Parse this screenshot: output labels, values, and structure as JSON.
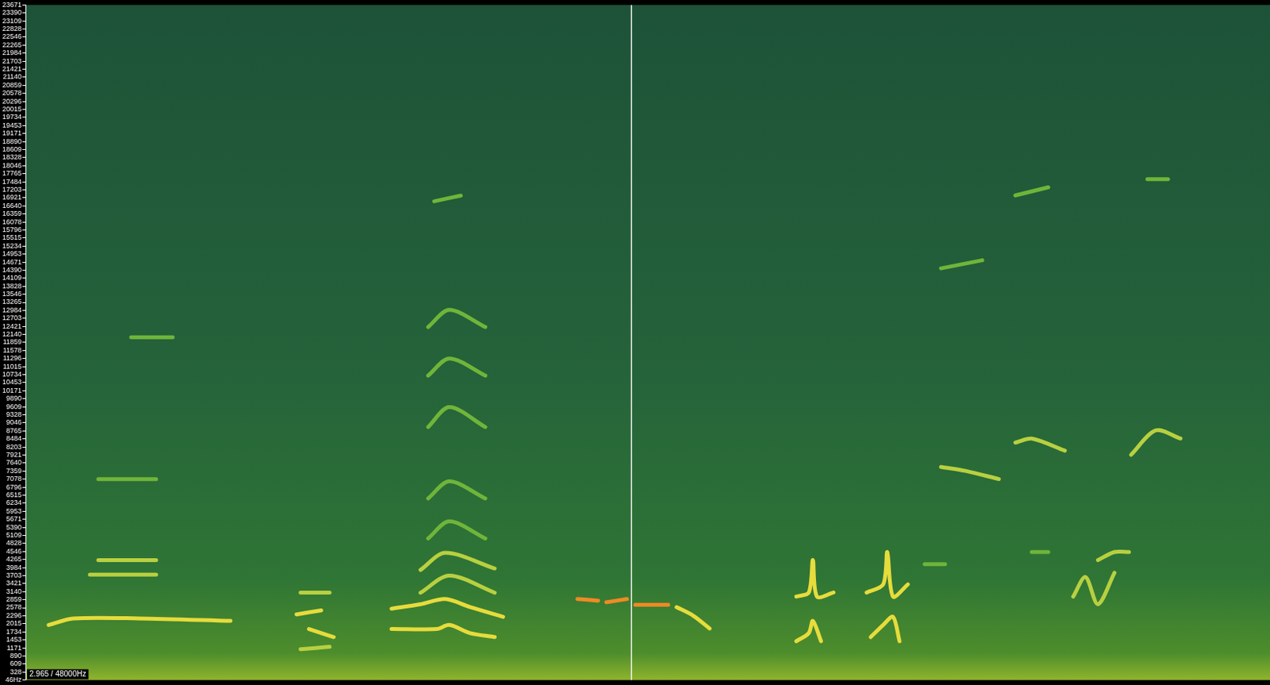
{
  "chart_data": {
    "type": "line",
    "status": "2.965 / 48000Hz",
    "cursor": 2.965,
    "grid": false,
    "tick_labels": "y",
    "xlim": [
      0,
      6.09
    ],
    "ylim": [
      46,
      23671
    ],
    "yticks": [
      {
        "value": 46,
        "label": "46Hz"
      },
      328,
      609,
      890,
      1171,
      1453,
      1734,
      2015,
      2296,
      2578,
      2859,
      3140,
      3421,
      3703,
      3984,
      4265,
      4546,
      4828,
      5109,
      5390,
      5671,
      5953,
      6234,
      6515,
      6796,
      7078,
      7359,
      7640,
      7921,
      8203,
      8484,
      8765,
      9046,
      9328,
      9609,
      9890,
      10171,
      10453,
      10734,
      11015,
      11296,
      11578,
      11859,
      12140,
      12421,
      12703,
      12984,
      13265,
      13546,
      13828,
      14109,
      14390,
      14671,
      14953,
      15234,
      15515,
      15796,
      16078,
      16359,
      16640,
      16921,
      17203,
      17484,
      17765,
      18046,
      18328,
      18609,
      18890,
      19171,
      19453,
      19734,
      20015,
      20296,
      20578,
      20859,
      21140,
      21421,
      21703,
      21984,
      22265,
      22546,
      22828,
      23109,
      23390,
      23671
    ],
    "series": [
      {
        "color": "#e6dc3c",
        "x": [
          0.113,
          0.234,
          0.558,
          1.003
        ],
        "values": [
          1974,
          2201,
          2201,
          2116
        ]
      },
      {
        "color": "#b8d040",
        "x": [
          0.315,
          0.639
        ],
        "values": [
          3733,
          3733
        ]
      },
      {
        "color": "#b8d040",
        "x": [
          0.356,
          0.639
        ],
        "values": [
          4243,
          4243
        ]
      },
      {
        "color": "#6fb53a",
        "x": [
          0.356,
          0.639
        ],
        "values": [
          7079,
          7079
        ]
      },
      {
        "color": "#6fb53a",
        "x": [
          0.517,
          0.72
        ],
        "values": [
          12042,
          12042
        ]
      },
      {
        "color": "#b8d040",
        "x": [
          1.346,
          1.488
        ],
        "values": [
          3109,
          3109
        ]
      },
      {
        "color": "#e6dc3c",
        "x": [
          1.326,
          1.447
        ],
        "values": [
          2343,
          2485
        ]
      },
      {
        "color": "#e6dc3c",
        "x": [
          1.387,
          1.508
        ],
        "values": [
          1833,
          1549
        ]
      },
      {
        "color": "#b8d040",
        "x": [
          1.346,
          1.488
        ],
        "values": [
          1124,
          1209
        ]
      },
      {
        "color": "#e6dc3c",
        "x": [
          1.791,
          2.013,
          2.074,
          2.175,
          2.296
        ],
        "values": [
          1833,
          1833,
          1974,
          1691,
          1549
        ]
      },
      {
        "color": "#e6dc3c",
        "x": [
          1.791,
          1.933,
          2.054,
          2.175,
          2.337
        ],
        "values": [
          2542,
          2700,
          2882,
          2600,
          2258
        ]
      },
      {
        "color": "#b8d040",
        "x": [
          1.933,
          2.074,
          2.296
        ],
        "values": [
          3100,
          3700,
          3100
        ]
      },
      {
        "color": "#b8d040",
        "x": [
          1.933,
          2.054,
          2.296
        ],
        "values": [
          3900,
          4500,
          3950
        ]
      },
      {
        "color": "#6fb53a",
        "x": [
          1.97,
          2.074,
          2.25
        ],
        "values": [
          5000,
          5600,
          5000
        ]
      },
      {
        "color": "#6fb53a",
        "x": [
          1.97,
          2.074,
          2.25
        ],
        "values": [
          6400,
          7000,
          6400
        ]
      },
      {
        "color": "#6fb53a",
        "x": [
          1.97,
          2.074,
          2.25
        ],
        "values": [
          8900,
          9600,
          8900
        ]
      },
      {
        "color": "#6fb53a",
        "x": [
          1.97,
          2.074,
          2.25
        ],
        "values": [
          10700,
          11300,
          10700
        ]
      },
      {
        "color": "#6fb53a",
        "x": [
          1.97,
          2.074,
          2.25
        ],
        "values": [
          12400,
          13000,
          12400
        ]
      },
      {
        "color": "#6fb53a",
        "x": [
          2.0,
          2.13
        ],
        "values": [
          16800,
          17000
        ]
      },
      {
        "color": "#f08a24",
        "x": [
          2.701,
          2.802
        ],
        "values": [
          2882,
          2825
        ]
      },
      {
        "color": "#f08a24",
        "x": [
          2.842,
          2.943
        ],
        "values": [
          2769,
          2882
        ]
      },
      {
        "color": "#f08a24",
        "x": [
          2.984,
          3.145
        ],
        "values": [
          2683,
          2683
        ]
      },
      {
        "color": "#e6dc3c",
        "x": [
          3.186,
          3.267,
          3.348
        ],
        "values": [
          2598,
          2300,
          1850
        ]
      },
      {
        "color": "#e6dc3c",
        "x": [
          3.772,
          3.833,
          3.853,
          3.873,
          3.954
        ],
        "values": [
          2967,
          3109,
          4243,
          2967,
          3109
        ]
      },
      {
        "color": "#e6dc3c",
        "x": [
          3.772,
          3.833,
          3.853,
          3.893
        ],
        "values": [
          1407,
          1691,
          2116,
          1407
        ]
      },
      {
        "color": "#e6dc3c",
        "x": [
          4.116,
          4.197,
          4.217,
          4.245,
          4.318
        ],
        "values": [
          3109,
          3392,
          4527,
          2967,
          3392
        ]
      },
      {
        "color": "#e6dc3c",
        "x": [
          4.136,
          4.197,
          4.245,
          4.277
        ],
        "values": [
          1549,
          1974,
          2258,
          1407
        ]
      },
      {
        "color": "#b8d040",
        "x": [
          4.48,
          4.601,
          4.763
        ],
        "values": [
          7505,
          7363,
          7079
        ]
      },
      {
        "color": "#b8d040",
        "x": [
          4.844,
          4.924,
          5.086
        ],
        "values": [
          8355,
          8497,
          8072
        ]
      },
      {
        "color": "#b8d040",
        "x": [
          5.41,
          5.531,
          5.652
        ],
        "values": [
          7930,
          8781,
          8497
        ]
      },
      {
        "color": "#6fb53a",
        "x": [
          4.48,
          4.682
        ],
        "values": [
          14453,
          14737
        ]
      },
      {
        "color": "#6fb53a",
        "x": [
          4.844,
          5.005
        ],
        "values": [
          17005,
          17289
        ]
      },
      {
        "color": "#6fb53a",
        "x": [
          5.49,
          5.591
        ],
        "values": [
          17573,
          17573
        ]
      },
      {
        "color": "#b8d040",
        "x": [
          5.127,
          5.187,
          5.248,
          5.329
        ],
        "values": [
          2967,
          3650,
          2700,
          3800
        ]
      },
      {
        "color": "#b8d040",
        "x": [
          5.248,
          5.329,
          5.4
        ],
        "values": [
          4243,
          4527,
          4527
        ]
      },
      {
        "color": "#6fb53a",
        "x": [
          4.924,
          5.005
        ],
        "values": [
          4527,
          4527
        ]
      },
      {
        "color": "#6fb53a",
        "x": [
          4.4,
          4.5
        ],
        "values": [
          4100,
          4100
        ]
      }
    ]
  }
}
